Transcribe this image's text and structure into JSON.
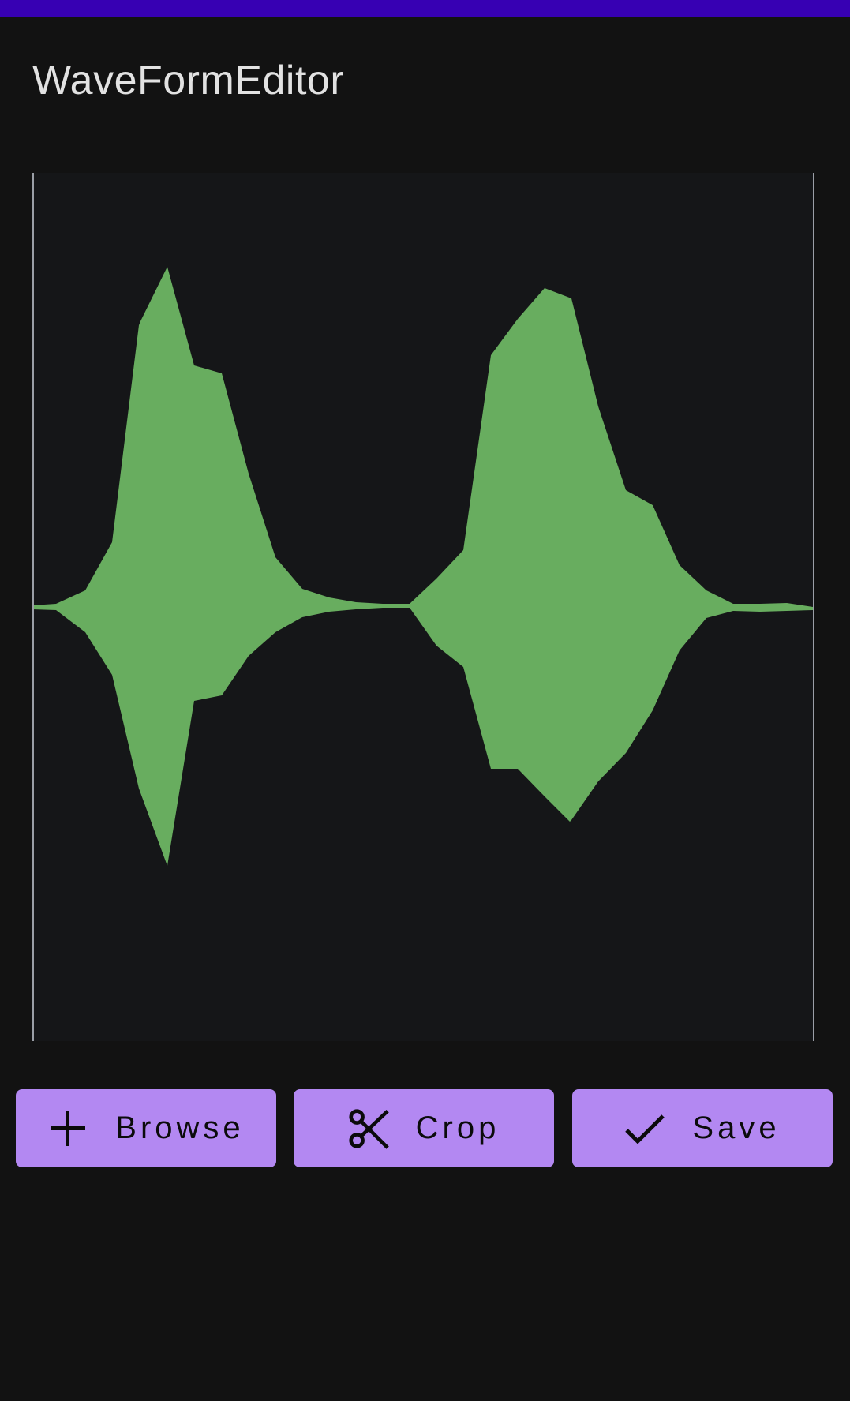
{
  "app": {
    "title": "WaveFormEditor"
  },
  "colors": {
    "status_bar": "#3700b3",
    "background": "#121212",
    "waveform_fill": "#68ad5f",
    "button_bg": "#b388f2",
    "handle": "#9a9ea6"
  },
  "toolbar": {
    "browse_label": "Browse",
    "browse_icon": "plus-icon",
    "crop_label": "Crop",
    "crop_icon": "scissors-icon",
    "save_label": "Save",
    "save_icon": "check-icon"
  }
}
